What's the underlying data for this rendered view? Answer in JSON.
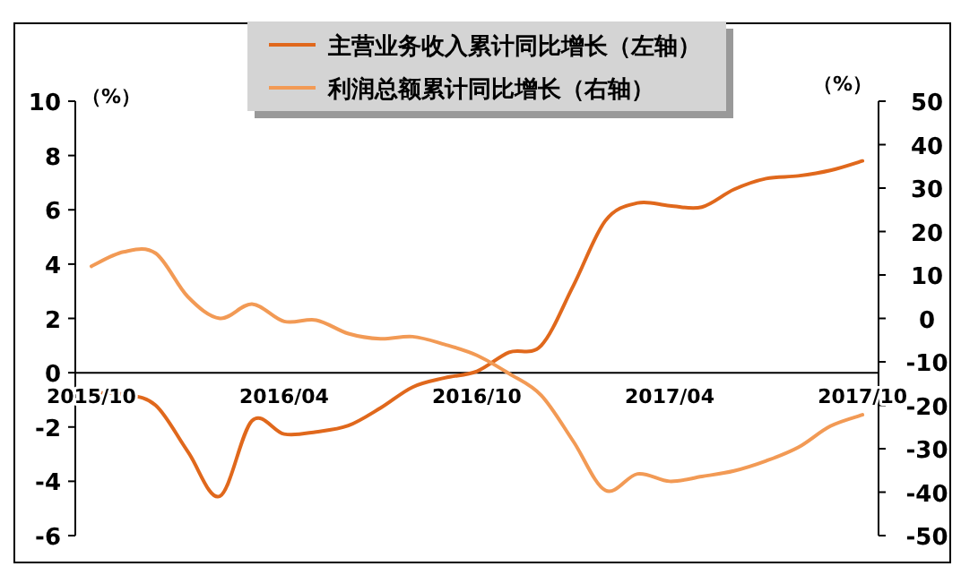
{
  "chart_data": {
    "type": "line",
    "ylabel": "（%）",
    "y2label": "（%）",
    "categories": [
      "2015/10",
      null,
      null,
      null,
      null,
      null,
      "2016/04",
      null,
      null,
      null,
      null,
      null,
      "2016/10",
      null,
      null,
      null,
      null,
      null,
      "2017/04",
      null,
      null,
      null,
      null,
      null,
      "2017/10"
    ],
    "series": [
      {
        "name": "主营业务收入累计同比增长（左轴）",
        "color": "#e0681c",
        "values": [
          -0.75,
          -0.8,
          -1.2,
          -2.9,
          -4.55,
          -1.77,
          -2.26,
          -2.18,
          -1.95,
          -1.3,
          -0.53,
          -0.19,
          0.05,
          0.75,
          1.0,
          3.2,
          5.6,
          6.25,
          6.15,
          6.1,
          6.75,
          7.15,
          7.25,
          7.45,
          7.8
        ]
      },
      {
        "name": "利润总额累计同比增长（右轴）",
        "color": "#f29a55",
        "axis": "y2",
        "values": [
          12,
          15.3,
          15,
          5,
          0,
          3.3,
          -0.7,
          -0.4,
          -3.5,
          -4.7,
          -4.2,
          -6,
          -8.5,
          -12.7,
          -17.7,
          -28.3,
          -39.6,
          -35.8,
          -37.5,
          -36.4,
          -35.1,
          -32.8,
          -29.7,
          -24.8,
          -22.2
        ]
      }
    ],
    "ylim": [
      -6,
      10
    ],
    "yticks": [
      -6,
      -4,
      -2,
      0,
      2,
      4,
      6,
      8,
      10
    ],
    "y2lim": [
      -50,
      50
    ],
    "y2ticks": [
      -50,
      -40,
      -30,
      -20,
      -10,
      0,
      10,
      20,
      30,
      40,
      50
    ],
    "legend": "top"
  }
}
